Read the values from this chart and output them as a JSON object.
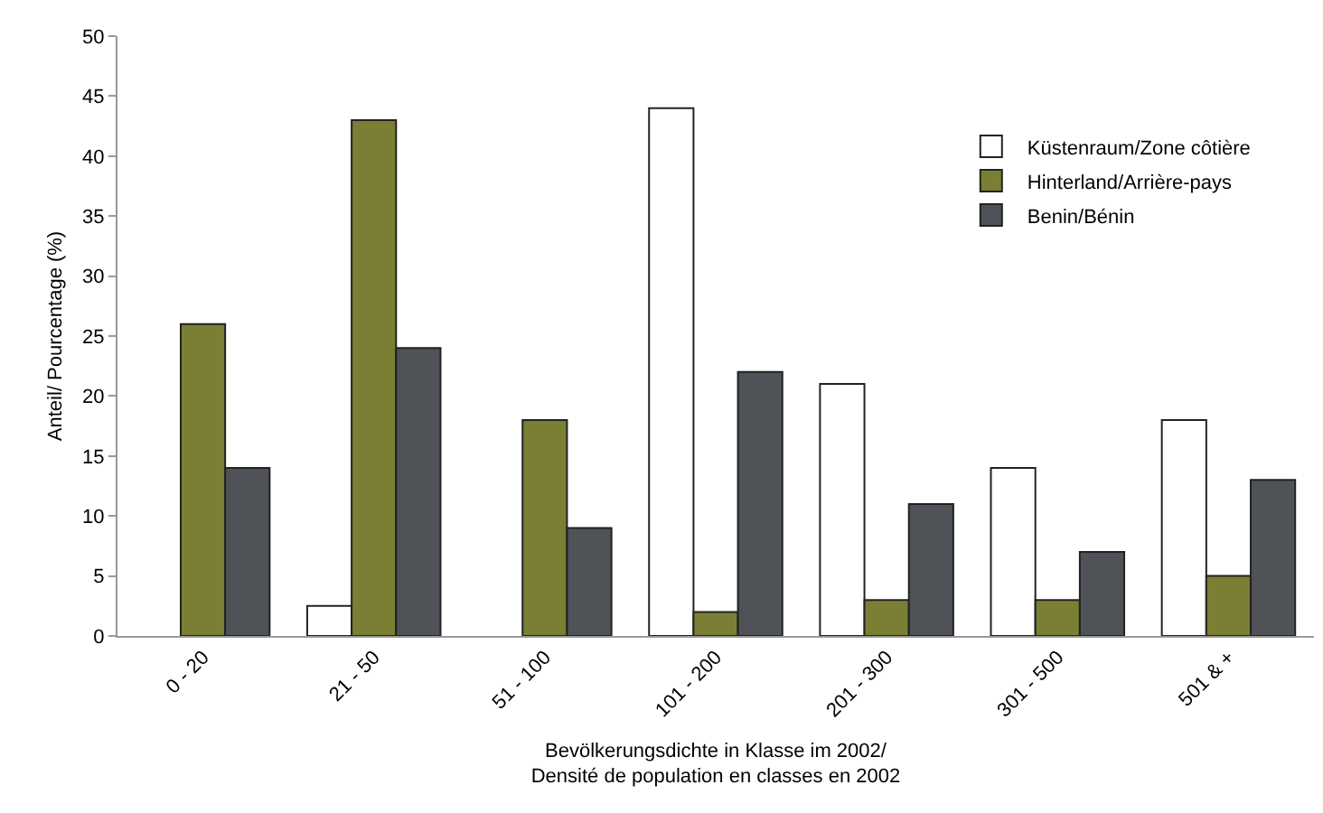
{
  "chart_data": {
    "type": "bar",
    "xlabel": "Bevölkerungsdichte in Klasse im 2002/\nDensité de population en classes en 2002",
    "ylabel": "Anteil/ Pourcentage (%)",
    "categories": [
      "0 - 20",
      "21 - 50",
      "51 - 100",
      "101 - 200",
      "201 - 300",
      "301 - 500",
      "501 & +"
    ],
    "series": [
      {
        "name": "Küstenraum/Zone côtière",
        "color": "#ffffff",
        "values": [
          null,
          2.5,
          null,
          44,
          21,
          14,
          18
        ]
      },
      {
        "name": "Hinterland/Arrière-pays",
        "color": "#7a7f34",
        "values": [
          26,
          43,
          18,
          2,
          3,
          3,
          5
        ]
      },
      {
        "name": "Benin/Bénin",
        "color": "#4f5256",
        "values": [
          14,
          24,
          9,
          22,
          11,
          7,
          13
        ]
      }
    ],
    "ylim": [
      0,
      50
    ],
    "yticks": [
      0,
      5,
      10,
      15,
      20,
      25,
      30,
      35,
      40,
      45,
      50
    ],
    "grid": false,
    "legend": "top right"
  }
}
